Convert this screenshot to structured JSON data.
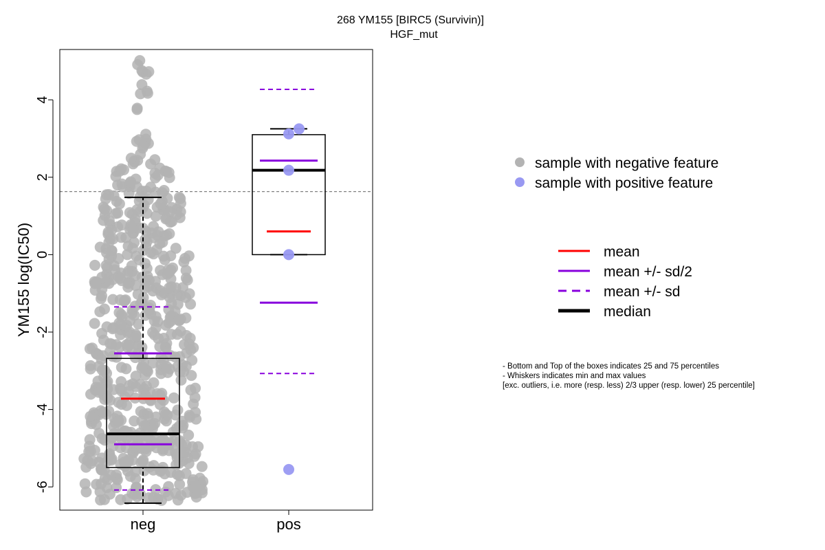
{
  "chart_data": {
    "type": "box",
    "title": "268 YM155 [BIRC5 (Survivin)]",
    "subtitle": "HGF_mut",
    "xlabel": "",
    "ylabel": "YM155 log(IC50)",
    "categories": [
      "neg",
      "pos"
    ],
    "ylim": [
      -6.6,
      5.3
    ],
    "yticks": [
      -6,
      -4,
      -2,
      0,
      2,
      4
    ],
    "threshold_line": 1.63,
    "colors": {
      "negative": "#b3b3b3",
      "positive": "#9999f2",
      "mean": "#ff0000",
      "sd": "#8800dd",
      "median": "#000000",
      "threshold": "#808080"
    },
    "groups": [
      {
        "name": "neg",
        "box": {
          "q1": -5.5,
          "median": -4.63,
          "q3": -2.68,
          "whisker_low": -6.42,
          "whisker_high": 1.48
        },
        "mean": -3.72,
        "mean_minus_half_sd": -4.9,
        "mean_plus_half_sd": -2.55,
        "mean_minus_sd": -6.08,
        "mean_plus_sd": -1.35,
        "n_points_approx": 900
      },
      {
        "name": "pos",
        "box": {
          "q1": 0.0,
          "median": 2.18,
          "q3": 3.1,
          "whisker_low": 0.0,
          "whisker_high": 3.25
        },
        "mean": 0.6,
        "mean_minus_half_sd": -1.24,
        "mean_plus_half_sd": 2.43,
        "mean_minus_sd": -3.07,
        "mean_plus_sd": 4.27,
        "points": [
          3.25,
          3.12,
          2.18,
          0.0,
          -5.55
        ]
      }
    ],
    "legend_points": [
      {
        "label": "sample with negative feature",
        "color": "#b3b3b3"
      },
      {
        "label": "sample with positive feature",
        "color": "#9999f2"
      }
    ],
    "legend_lines": [
      {
        "label": "mean",
        "color": "#ff0000",
        "style": "solid",
        "weight": "normal"
      },
      {
        "label": "mean +/- sd/2",
        "color": "#8800dd",
        "style": "solid",
        "weight": "normal"
      },
      {
        "label": "mean +/- sd",
        "color": "#8800dd",
        "style": "dashed",
        "weight": "normal"
      },
      {
        "label": "median",
        "color": "#000000",
        "style": "solid",
        "weight": "bold"
      }
    ],
    "notes": [
      "- Bottom and Top of the boxes indicates 25 and 75 percentiles",
      "- Whiskers indicates min and max values",
      "[exc. outliers, i.e. more (resp. less) 2/3 upper (resp. lower) 25 percentile]"
    ]
  }
}
